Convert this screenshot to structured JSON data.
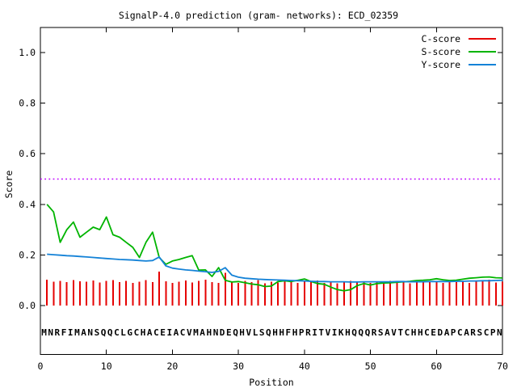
{
  "title": "SignalP-4.0 prediction (gram- networks): ECD_02359",
  "axes": {
    "x_label": "Position",
    "y_label": "Score",
    "x_ticks": [
      0,
      10,
      20,
      30,
      40,
      50,
      60,
      70
    ],
    "y_ticks": [
      "0.0",
      "0.2",
      "0.4",
      "0.6",
      "0.8",
      "1.0"
    ],
    "x_range": [
      0,
      70
    ],
    "y_range": [
      -0.2,
      1.1
    ]
  },
  "legend": [
    {
      "label": "C-score",
      "color": "#e60000"
    },
    {
      "label": "S-score",
      "color": "#00b400"
    },
    {
      "label": "Y-score",
      "color": "#1482d7"
    }
  ],
  "threshold": {
    "value": 0.5,
    "color": "#bf00ff",
    "style": "dotted"
  },
  "sequence": "MNRFIMANSQQCLGCHACEIACVMAHNDEQHVLSQHHFHPRITVIKHQQQRSAVTCHHCEDAPCARSCPN",
  "chart_data": {
    "type": "line",
    "title": "SignalP-4.0 prediction (gram- networks): ECD_02359",
    "xlabel": "Position",
    "ylabel": "Score",
    "xlim": [
      0,
      70
    ],
    "ylim": [
      -0.2,
      1.1
    ],
    "grid": false,
    "legend_position": "top-right-inside",
    "threshold_line": 0.5,
    "x_positions_start": 1,
    "series": [
      {
        "name": "C-score",
        "style": "impulses",
        "color": "#e60000",
        "values": [
          0.103,
          0.095,
          0.098,
          0.092,
          0.1,
          0.096,
          0.094,
          0.099,
          0.091,
          0.097,
          0.101,
          0.093,
          0.098,
          0.09,
          0.095,
          0.1,
          0.092,
          0.134,
          0.096,
          0.089,
          0.094,
          0.099,
          0.091,
          0.097,
          0.102,
          0.093,
          0.089,
          0.13,
          0.095,
          0.09,
          0.098,
          0.093,
          0.1,
          0.088,
          0.095,
          0.091,
          0.097,
          0.094,
          0.089,
          0.096,
          0.092,
          0.099,
          0.09,
          0.095,
          0.088,
          0.093,
          0.097,
          0.091,
          0.094,
          0.089,
          0.096,
          0.092,
          0.098,
          0.09,
          0.094,
          0.088,
          0.095,
          0.091,
          0.097,
          0.093,
          0.089,
          0.096,
          0.092,
          0.098,
          0.09,
          0.094,
          0.1,
          0.103,
          0.091,
          0.095
        ]
      },
      {
        "name": "S-score",
        "style": "line",
        "color": "#00b400",
        "values": [
          0.4,
          0.37,
          0.25,
          0.3,
          0.33,
          0.27,
          0.29,
          0.31,
          0.3,
          0.35,
          0.28,
          0.27,
          0.25,
          0.23,
          0.19,
          0.25,
          0.29,
          0.19,
          0.163,
          0.176,
          0.182,
          0.19,
          0.197,
          0.14,
          0.141,
          0.115,
          0.15,
          0.1,
          0.093,
          0.095,
          0.09,
          0.085,
          0.082,
          0.075,
          0.077,
          0.095,
          0.098,
          0.095,
          0.1,
          0.105,
          0.095,
          0.087,
          0.084,
          0.073,
          0.063,
          0.058,
          0.063,
          0.079,
          0.087,
          0.081,
          0.087,
          0.089,
          0.09,
          0.092,
          0.094,
          0.096,
          0.099,
          0.1,
          0.102,
          0.106,
          0.102,
          0.099,
          0.1,
          0.104,
          0.108,
          0.11,
          0.112,
          0.113,
          0.11,
          0.109
        ]
      },
      {
        "name": "Y-score",
        "style": "line",
        "color": "#1482d7",
        "values": [
          0.203,
          0.201,
          0.199,
          0.197,
          0.196,
          0.194,
          0.192,
          0.19,
          0.188,
          0.186,
          0.184,
          0.182,
          0.181,
          0.18,
          0.178,
          0.176,
          0.178,
          0.192,
          0.157,
          0.148,
          0.144,
          0.141,
          0.139,
          0.136,
          0.134,
          0.131,
          0.135,
          0.15,
          0.12,
          0.112,
          0.108,
          0.106,
          0.104,
          0.103,
          0.102,
          0.101,
          0.1,
          0.099,
          0.098,
          0.097,
          0.096,
          0.095,
          0.095,
          0.094,
          0.094,
          0.094,
          0.093,
          0.093,
          0.094,
          0.094,
          0.094,
          0.094,
          0.094,
          0.095,
          0.095,
          0.094,
          0.094,
          0.094,
          0.095,
          0.095,
          0.095,
          0.095,
          0.096,
          0.096,
          0.097,
          0.097,
          0.098,
          0.098,
          0.099,
          0.1
        ]
      }
    ]
  }
}
